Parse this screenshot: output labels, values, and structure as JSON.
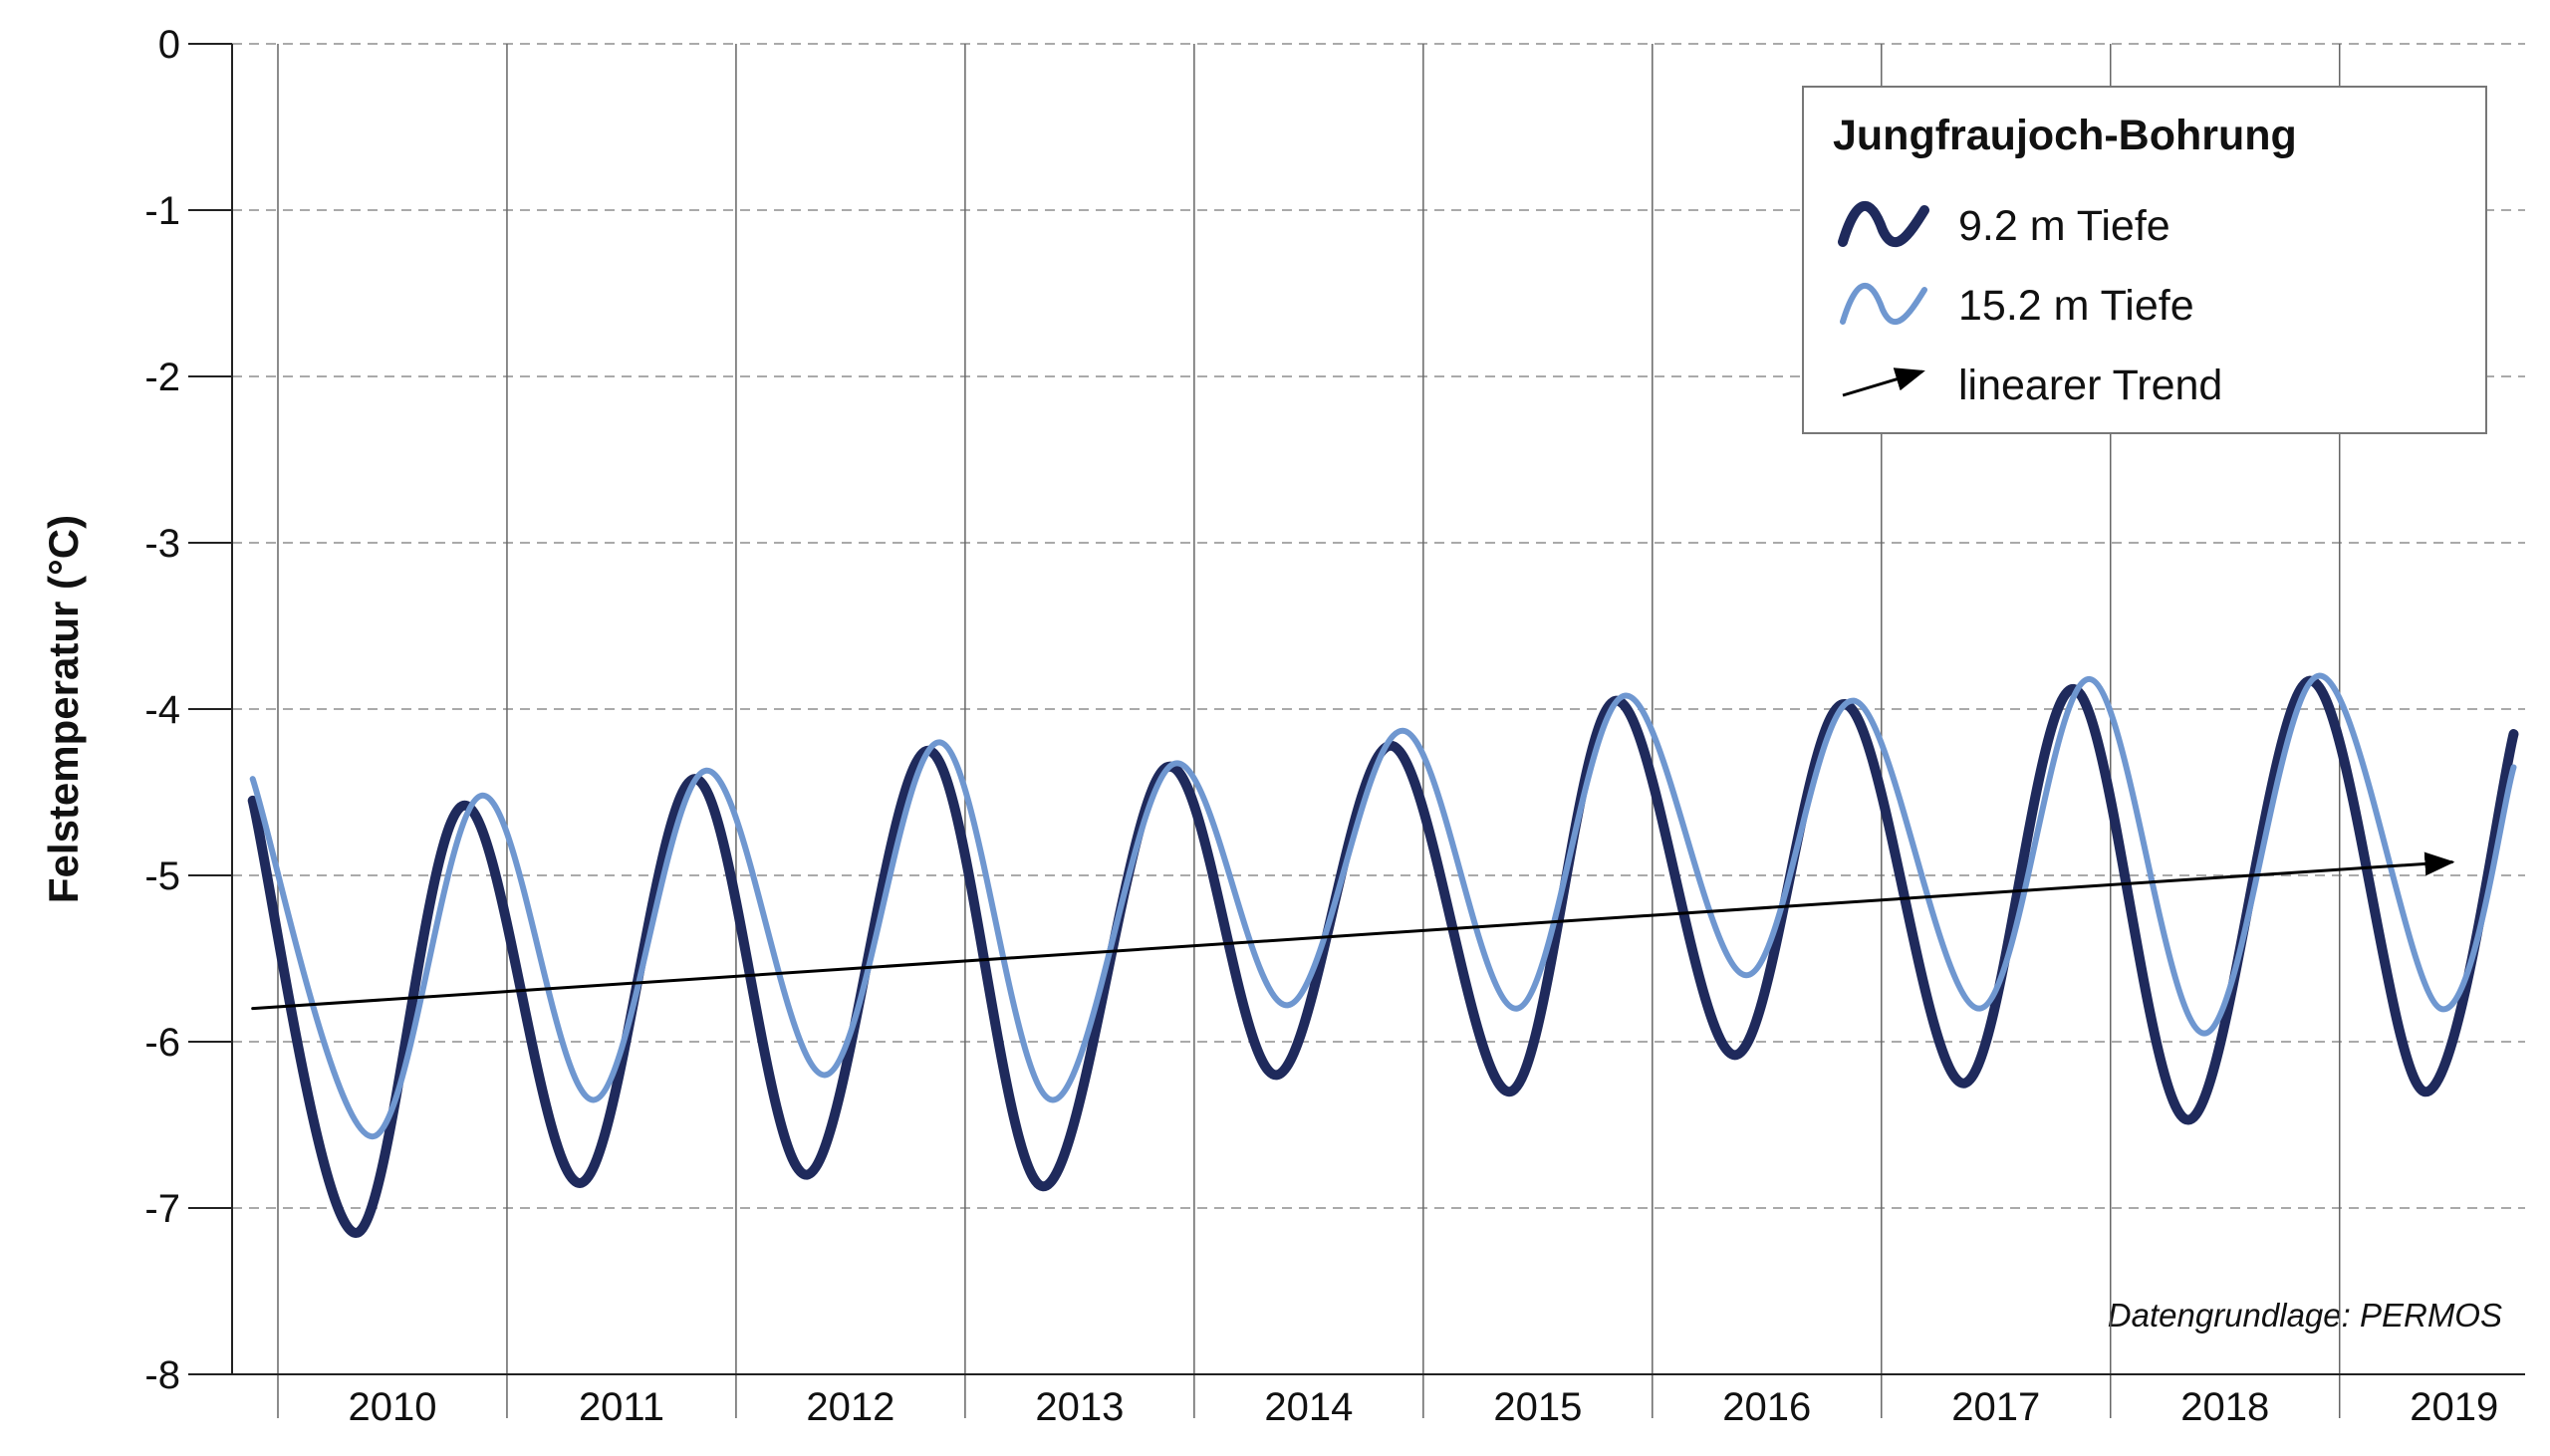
{
  "chart_data": {
    "type": "line",
    "y_label": "Felstemperatur (°C)",
    "annotation": "Datengrundlage: PERMOS",
    "legend_title": "Jungfraujoch-Bohrung",
    "legend_position": "upper right",
    "xlim": [
      2009.8,
      2019.81
    ],
    "xticks": [
      2010,
      2011,
      2012,
      2013,
      2014,
      2015,
      2016,
      2017,
      2018,
      2019
    ],
    "ylim": [
      -8,
      0
    ],
    "yticks": [
      -8,
      -7,
      -6,
      -5,
      -4,
      -3,
      -2,
      -1,
      0
    ],
    "grid": true,
    "series": [
      {
        "name": "9.2 m Tiefe",
        "color": "#1f2a5c",
        "style": "thick",
        "x": [
          2009.89,
          2010.34,
          2010.81,
          2011.32,
          2011.82,
          2012.31,
          2012.84,
          2013.34,
          2013.88,
          2014.36,
          2014.86,
          2015.38,
          2015.84,
          2016.36,
          2016.84,
          2017.36,
          2017.84,
          2018.34,
          2018.87,
          2019.37,
          2019.76
        ],
        "values": [
          -4.55,
          -7.15,
          -4.58,
          -6.85,
          -4.42,
          -6.8,
          -4.25,
          -6.87,
          -4.35,
          -6.2,
          -4.22,
          -6.3,
          -3.95,
          -6.08,
          -3.97,
          -6.25,
          -3.88,
          -6.47,
          -3.83,
          -6.3,
          -4.15
        ]
      },
      {
        "name": "15.2 m Tiefe",
        "color": "#6f97d0",
        "style": "thin",
        "x": [
          2009.89,
          2010.41,
          2010.89,
          2011.38,
          2011.87,
          2012.39,
          2012.89,
          2013.38,
          2013.91,
          2014.41,
          2014.91,
          2015.41,
          2015.88,
          2016.41,
          2016.88,
          2017.43,
          2017.91,
          2018.41,
          2018.91,
          2019.44,
          2019.76
        ],
        "values": [
          -4.42,
          -6.57,
          -4.52,
          -6.35,
          -4.37,
          -6.2,
          -4.2,
          -6.35,
          -4.33,
          -5.78,
          -4.13,
          -5.8,
          -3.92,
          -5.6,
          -3.95,
          -5.8,
          -3.82,
          -5.95,
          -3.8,
          -5.8,
          -4.35
        ]
      },
      {
        "name": "linearer Trend",
        "color": "#000000",
        "style": "arrow",
        "x": [
          2009.89,
          2019.49
        ],
        "values": [
          -5.8,
          -4.92
        ]
      }
    ]
  }
}
